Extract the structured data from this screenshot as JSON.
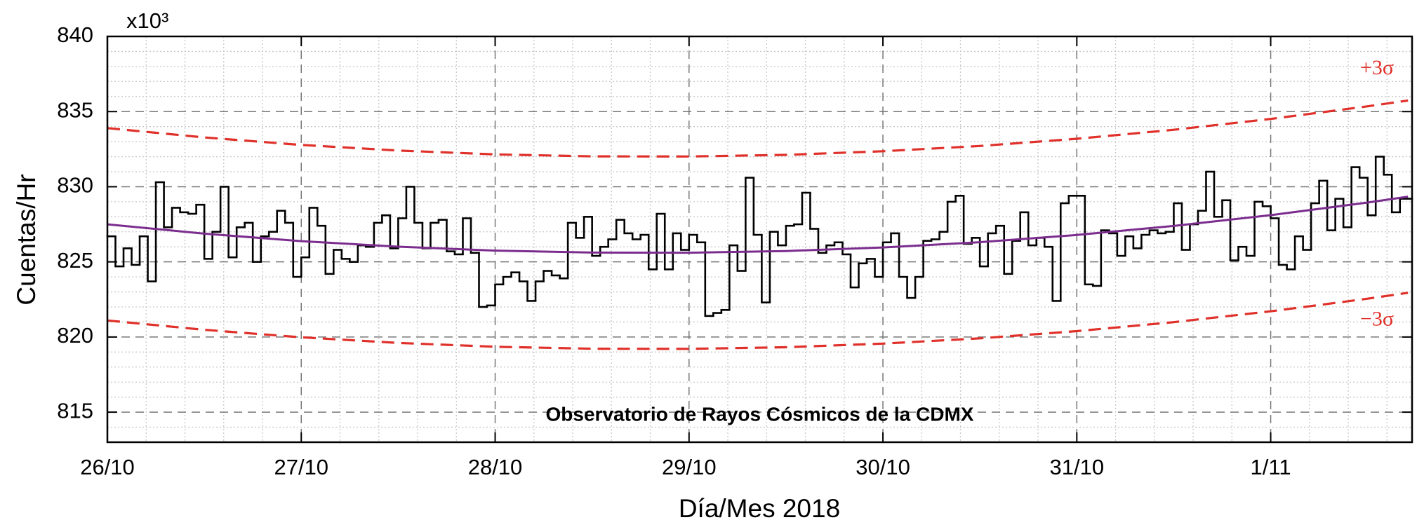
{
  "chart_data": {
    "type": "line",
    "y_label": "Cuentas/Hr",
    "x_label": "Día/Mes 2018",
    "y_multiplier": "x10³",
    "annotation": "Observatorio de Rayos Cósmicos de la CDMX",
    "xlim": [
      0,
      161.5
    ],
    "xticks": [
      {
        "value": 0,
        "label": "26/10"
      },
      {
        "value": 24,
        "label": "27/10"
      },
      {
        "value": 48,
        "label": "28/10"
      },
      {
        "value": 72,
        "label": "29/10"
      },
      {
        "value": 96,
        "label": "30/10"
      },
      {
        "value": 120,
        "label": "31/10"
      },
      {
        "value": 144,
        "label": "1/11"
      }
    ],
    "ylim": [
      813,
      840
    ],
    "yticks": [
      815,
      820,
      825,
      830,
      835,
      840
    ],
    "grid": true,
    "minor_grid": true,
    "series": [
      {
        "style": "step",
        "color": "#000000",
        "x": [
          0,
          1,
          2,
          3,
          4,
          5,
          6,
          7,
          8,
          9,
          10,
          11,
          12,
          13,
          14,
          15,
          16,
          17,
          18,
          19,
          20,
          21,
          22,
          23,
          24,
          25,
          26,
          27,
          28,
          29,
          30,
          31,
          32,
          33,
          34,
          35,
          36,
          37,
          38,
          39,
          40,
          41,
          42,
          43,
          44,
          45,
          46,
          47,
          48,
          49,
          50,
          51,
          52,
          53,
          54,
          55,
          56,
          57,
          58,
          59,
          60,
          61,
          62,
          63,
          64,
          65,
          66,
          67,
          68,
          69,
          70,
          71,
          72,
          73,
          74,
          75,
          76,
          77,
          78,
          79,
          80,
          81,
          82,
          83,
          84,
          85,
          86,
          87,
          88,
          89,
          90,
          91,
          92,
          93,
          94,
          95,
          96,
          97,
          98,
          99,
          100,
          101,
          102,
          103,
          104,
          105,
          106,
          107,
          108,
          109,
          110,
          111,
          112,
          113,
          114,
          115,
          116,
          117,
          118,
          119,
          120,
          121,
          122,
          123,
          124,
          125,
          126,
          127,
          128,
          129,
          130,
          131,
          132,
          133,
          134,
          135,
          136,
          137,
          138,
          139,
          140,
          141,
          142,
          143,
          144,
          145,
          146,
          147,
          148,
          149,
          150,
          151,
          152,
          153,
          154,
          155,
          156,
          157,
          158,
          159,
          160
        ],
        "values": [
          826.7,
          824.7,
          825.9,
          824.8,
          826.7,
          823.7,
          830.3,
          827.3,
          828.6,
          828.3,
          828.2,
          828.8,
          825.2,
          827.0,
          830.0,
          825.3,
          827.3,
          827.6,
          825.0,
          826.7,
          827.0,
          828.4,
          827.6,
          824.0,
          825.3,
          828.6,
          827.4,
          824.2,
          825.8,
          825.2,
          825.0,
          826.1,
          826.0,
          827.6,
          828.1,
          825.9,
          827.9,
          830.0,
          827.6,
          825.9,
          827.6,
          827.8,
          825.7,
          825.5,
          827.9,
          825.6,
          822.0,
          822.1,
          823.5,
          824.0,
          824.3,
          823.7,
          822.4,
          823.7,
          824.4,
          824.1,
          823.9,
          827.6,
          826.6,
          828.0,
          825.4,
          826.0,
          826.5,
          827.8,
          826.9,
          826.5,
          826.8,
          824.5,
          828.2,
          824.5,
          826.9,
          825.8,
          826.8,
          826.3,
          821.4,
          821.6,
          821.8,
          826.1,
          824.4,
          830.6,
          826.8,
          822.3,
          827.0,
          826.1,
          827.4,
          827.5,
          829.6,
          827.2,
          825.6,
          826.1,
          826.3,
          825.5,
          823.3,
          824.9,
          825.2,
          824.0,
          826.3,
          826.9,
          824.0,
          822.6,
          824.0,
          826.4,
          826.5,
          827.0,
          829.0,
          829.4,
          826.2,
          826.6,
          824.7,
          826.9,
          827.4,
          824.2,
          826.4,
          828.3,
          826.1,
          826.6,
          826.0,
          822.4,
          828.9,
          829.4,
          829.4,
          823.5,
          823.4,
          827.1,
          826.9,
          825.4,
          826.7,
          825.9,
          826.8,
          827.1,
          826.9,
          827.0,
          828.9,
          825.8,
          827.5,
          828.4,
          831.0,
          828.0,
          829.1,
          825.1,
          826.0,
          825.4,
          829.0,
          828.7,
          827.9,
          824.8,
          824.5,
          826.7,
          825.8,
          828.9,
          830.4,
          827.1,
          829.2,
          827.3,
          831.3,
          830.6,
          828.1,
          832.0,
          830.8,
          828.3,
          829.2
        ]
      },
      {
        "style": "solid",
        "color": "#7b2d8e",
        "x": [
          0,
          12,
          24,
          36,
          48,
          60,
          72,
          84,
          96,
          108,
          120,
          132,
          144,
          156,
          161
        ],
        "values": [
          827.5,
          826.88,
          826.38,
          826.01,
          825.75,
          825.62,
          825.61,
          825.72,
          825.96,
          826.31,
          826.79,
          827.39,
          828.11,
          828.95,
          829.34
        ]
      },
      {
        "name": "+3σ",
        "style": "dashed",
        "color": "#e0302a",
        "x": [
          0,
          12,
          24,
          36,
          48,
          60,
          72,
          84,
          96,
          108,
          120,
          132,
          144,
          156,
          161
        ],
        "values": [
          833.9,
          833.28,
          832.78,
          832.41,
          832.15,
          832.02,
          832.01,
          832.12,
          832.36,
          832.71,
          833.19,
          833.79,
          834.51,
          835.35,
          835.74
        ]
      },
      {
        "name": "−3σ",
        "style": "dashed",
        "color": "#e0302a",
        "x": [
          0,
          12,
          24,
          36,
          48,
          60,
          72,
          84,
          96,
          108,
          120,
          132,
          144,
          156,
          161
        ],
        "values": [
          821.1,
          820.48,
          819.98,
          819.61,
          819.35,
          819.22,
          819.21,
          819.32,
          819.56,
          819.91,
          820.39,
          820.99,
          821.71,
          822.55,
          822.94
        ]
      }
    ]
  }
}
